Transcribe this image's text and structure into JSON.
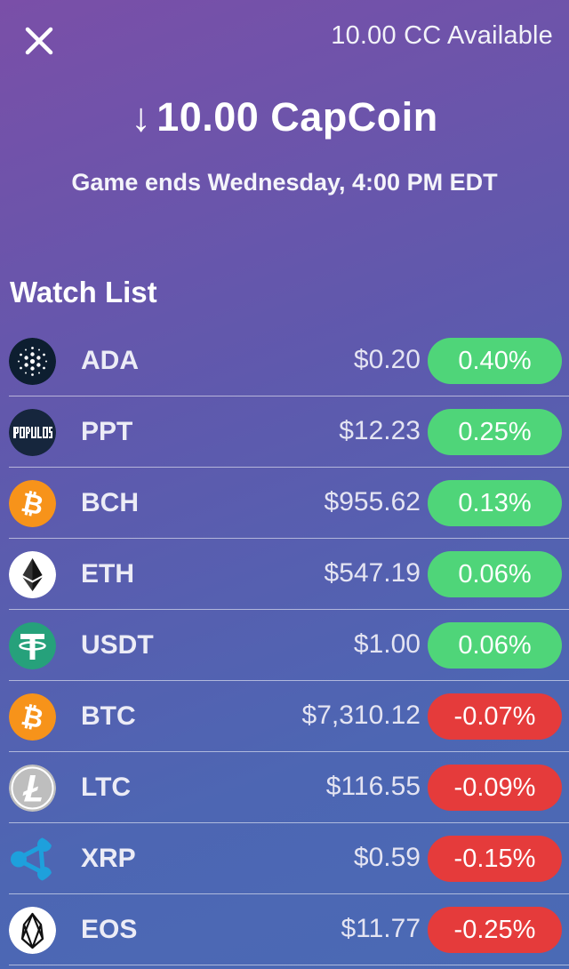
{
  "header": {
    "available": "10.00 CC Available",
    "amount_arrow": "↓",
    "amount": "10.00 CapCoin",
    "game_ends": "Game ends Wednesday, 4:00 PM EDT"
  },
  "watch_list": {
    "title": "Watch List",
    "colors": {
      "up": "#4fd579",
      "down": "#e53b3b"
    },
    "items": [
      {
        "symbol": "ADA",
        "price": "$0.20",
        "change": "0.40%",
        "direction": "up",
        "icon": "cardano-icon"
      },
      {
        "symbol": "PPT",
        "price": "$12.23",
        "change": "0.25%",
        "direction": "up",
        "icon": "populous-icon"
      },
      {
        "symbol": "BCH",
        "price": "$955.62",
        "change": "0.13%",
        "direction": "up",
        "icon": "bitcoin-cash-icon"
      },
      {
        "symbol": "ETH",
        "price": "$547.19",
        "change": "0.06%",
        "direction": "up",
        "icon": "ethereum-icon"
      },
      {
        "symbol": "USDT",
        "price": "$1.00",
        "change": "0.06%",
        "direction": "up",
        "icon": "tether-icon"
      },
      {
        "symbol": "BTC",
        "price": "$7,310.12",
        "change": "-0.07%",
        "direction": "down",
        "icon": "bitcoin-icon"
      },
      {
        "symbol": "LTC",
        "price": "$116.55",
        "change": "-0.09%",
        "direction": "down",
        "icon": "litecoin-icon"
      },
      {
        "symbol": "XRP",
        "price": "$0.59",
        "change": "-0.15%",
        "direction": "down",
        "icon": "ripple-icon"
      },
      {
        "symbol": "EOS",
        "price": "$11.77",
        "change": "-0.25%",
        "direction": "down",
        "icon": "eos-icon"
      }
    ]
  }
}
